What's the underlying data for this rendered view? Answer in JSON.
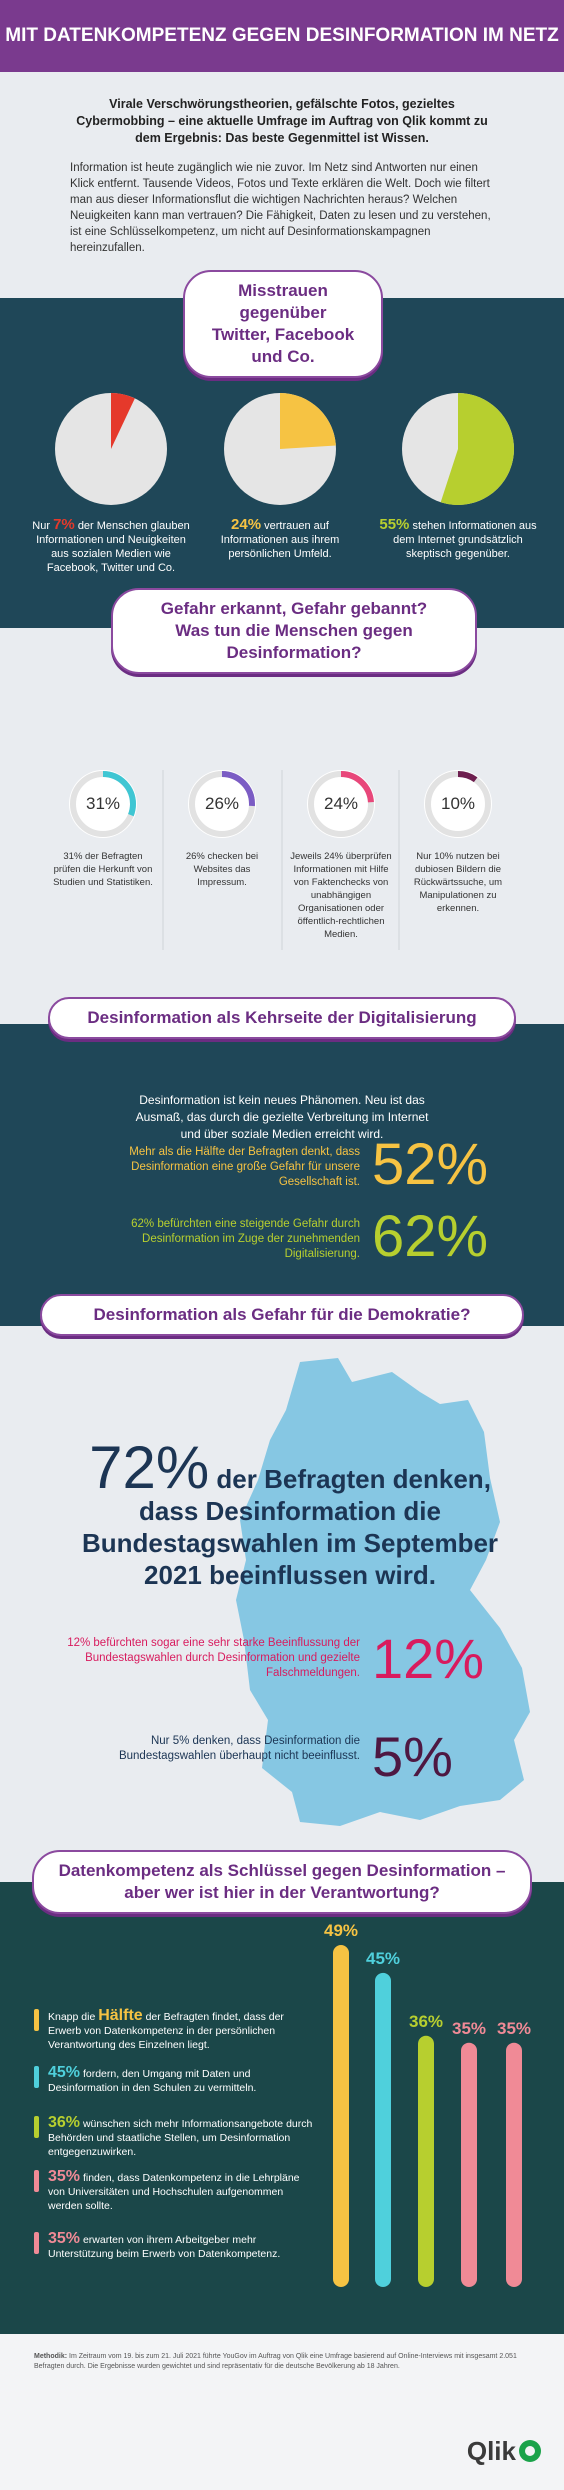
{
  "header": {
    "title": "MIT DATENKOMPETENZ GEGEN DESINFORMATION IM NETZ"
  },
  "intro": {
    "lead": "Virale Verschwörungstheorien, gefälschte Fotos, gezieltes Cybermobbing – eine aktuelle Umfrage im Auftrag von Qlik kommt zu dem Ergebnis: Das beste Gegenmittel ist Wissen.",
    "body": "Information ist heute zugänglich wie nie zuvor. Im Netz sind Antworten nur einen Klick entfernt. Tausende Videos, Fotos und Texte erklären die Welt. Doch wie filtert man aus dieser Informationsflut die wichtigen Nachrichten heraus? Welchen Neuigkeiten kann man vertrauen? Die Fähigkeit, Daten zu lesen und zu verstehen, ist eine Schlüsselkompetenz, um nicht auf Desinformationskampagnen hereinzufallen."
  },
  "pies": {
    "title": [
      "Misstrauen gegenüber",
      "Twitter, Facebook und Co."
    ],
    "items": [
      {
        "value": 7,
        "label": "7%",
        "color": "#e5392b",
        "before": "Nur",
        "after": "der Menschen glauben Informationen und Neuigkeiten aus sozialen Medien wie Facebook, Twitter und Co."
      },
      {
        "value": 24,
        "label": "24%",
        "color": "#f6c343",
        "after": "vertrauen auf Informationen aus ihrem persönlichen Umfeld."
      },
      {
        "value": 55,
        "label": "55%",
        "color": "#b7cf2f",
        "after": "stehen Informationen aus dem Internet grundsätzlich skeptisch gegenüber."
      }
    ]
  },
  "donuts": {
    "title": [
      "Gefahr erkannt, Gefahr gebannt?",
      "Was tun die Menschen gegen Desinformation?"
    ],
    "items": [
      {
        "value": 31,
        "label": "31%",
        "color": "#3fc6d3",
        "text": "31% der Befragten prüfen die Herkunft von Studien und Statistiken."
      },
      {
        "value": 26,
        "label": "26%",
        "color": "#7b5cc4",
        "text": "26% checken bei Websites das Impressum."
      },
      {
        "value": 24,
        "label": "24%",
        "color": "#e8477a",
        "text": "Jeweils 24% überprüfen Informationen mit Hilfe von Faktenchecks von unabhängigen Organisationen oder öffentlich-rechtlichen Medien."
      },
      {
        "value": 10,
        "label": "10%",
        "color": "#6e1f4f",
        "text": "Nur 10% nutzen bei dubiosen Bildern die Rückwärtssuche, um Manipulationen zu erkennen."
      }
    ]
  },
  "digital": {
    "title": "Desinformation als Kehrseite der Digitalisierung",
    "intro": "Desinformation ist kein neues Phänomen. Neu ist das Ausmaß, das durch die gezielte Verbreitung im Internet und über soziale Medien erreicht wird.",
    "items": [
      {
        "text": "Mehr als die Hälfte der Befragten denkt, dass Desinformation eine große Gefahr für unsere Gesellschaft ist.",
        "value": 52,
        "label": "52%",
        "color": "#f6c343"
      },
      {
        "text": "62% befürchten eine steigende Gefahr durch Desinformation im Zuge der zunehmenden Digitalisierung.",
        "value": 62,
        "label": "62%",
        "color": "#b7cf2f"
      }
    ]
  },
  "democracy": {
    "title": "Desinformation als Gefahr für die Demokratie?",
    "headline": {
      "value": 72,
      "label": "72%",
      "text": "der Befragten denken, dass Desinformation die Bundestagswahlen im September 2021 beeinflussen wird."
    },
    "items": [
      {
        "text": "12% befürchten sogar eine sehr starke Beeinflussung der Bundestagswahlen durch Desinformation und gezielte Falschmeldungen.",
        "value": 12,
        "label": "12%",
        "color": "#d81b5e"
      },
      {
        "text": "Nur 5% denken, dass Desinformation die Bundestagswahlen überhaupt nicht beeinflusst.",
        "value": 5,
        "label": "5%",
        "color": "#4e1842"
      }
    ]
  },
  "responsibility": {
    "title": [
      "Datenkompetenz als Schlüssel gegen Desinformation –",
      "aber wer ist hier in der Verantwortung?"
    ],
    "statements": [
      {
        "before": "Knapp die",
        "highlight": "Hälfte",
        "after": "der Befragten findet, dass der Erwerb von Datenkompetenz in der persönlichen Verantwortung des Einzelnen liegt."
      },
      {
        "highlight": "45%",
        "after": "fordern, den Umgang mit Daten und Desinformation in den Schulen zu vermitteln."
      },
      {
        "highlight": "36%",
        "after": "wünschen sich mehr Informationsangebote durch Behörden und staatliche Stellen, um Desinformation entgegenzuwirken."
      },
      {
        "highlight": "35%",
        "after": "finden, dass Datenkompetenz in die Lehrpläne von Universitäten und Hochschulen aufgenommen werden sollte."
      },
      {
        "highlight": "35%",
        "after": "erwarten von ihrem Arbeitgeber mehr Unterstützung beim Erwerb von Datenkompetenz."
      }
    ],
    "bars": [
      {
        "value": 49,
        "label": "49%",
        "color": "#f6c343"
      },
      {
        "value": 45,
        "label": "45%",
        "color": "#4fd0dc"
      },
      {
        "value": 36,
        "label": "36%",
        "color": "#b7cf2f"
      },
      {
        "value": 35,
        "label": "35%",
        "color": "#f08a96"
      },
      {
        "value": 35,
        "label": "35%",
        "color": "#f08a96"
      }
    ]
  },
  "footer": {
    "method_label": "Methodik:",
    "method": "Im Zeitraum vom 19. bis zum 21. Juli 2021 führte YouGov im Auftrag von Qlik eine Umfrage basierend auf Online-Interviews mit insgesamt 2.051 Befragten durch. Die Ergebnisse wurden gewichtet und sind repräsentativ für die deutsche Bevölkerung ab 18 Jahren.",
    "logo": "Qlik"
  }
}
